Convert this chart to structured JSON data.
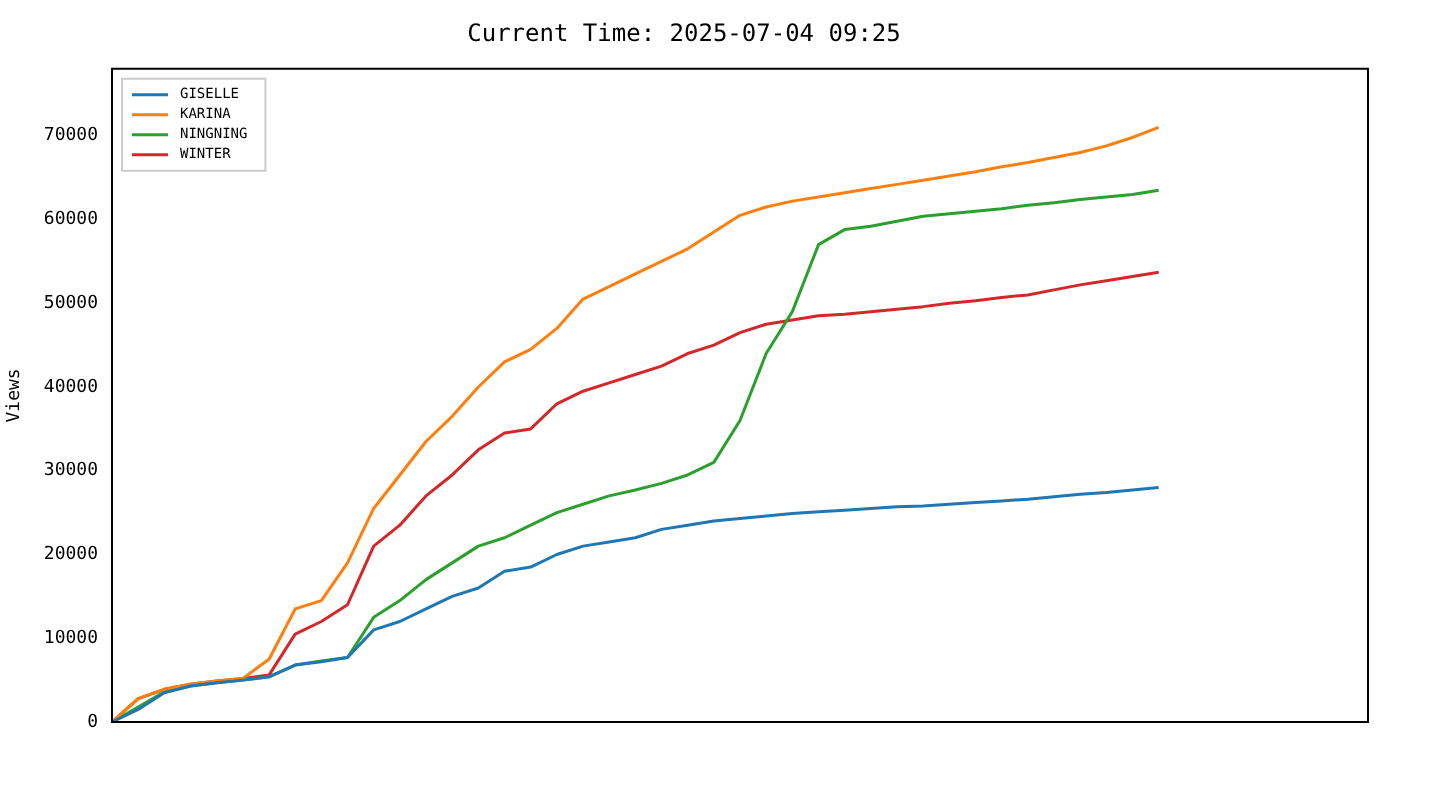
{
  "chart_data": {
    "type": "line",
    "title": "Current Time: 2025-07-04 09:25",
    "ylabel": "Views",
    "categories": [
      null,
      null,
      null,
      null,
      null,
      null,
      null,
      null,
      null,
      null,
      null,
      null,
      null,
      null,
      null,
      null,
      null,
      null,
      null,
      null,
      null,
      null,
      null,
      null,
      null,
      null,
      null,
      null,
      null,
      null,
      null,
      null,
      null,
      null,
      null,
      null,
      null,
      null,
      null,
      null,
      null,
      null,
      null,
      null,
      null,
      null,
      null,
      null,
      null
    ],
    "series": [
      {
        "name": "GISELLE",
        "color": "#1f77b4",
        "values": [
          0,
          1500,
          3500,
          4300,
          4700,
          5000,
          5400,
          6800,
          7200,
          7700,
          11000,
          12000,
          13500,
          15000,
          16000,
          18000,
          18500,
          20000,
          21000,
          21500,
          22000,
          23000,
          23500,
          24000,
          24300,
          24600,
          24900,
          25100,
          25300,
          25500,
          25700,
          25800,
          26000,
          26200,
          26400,
          26600,
          26900,
          27200,
          27400,
          27700,
          28000,
          null,
          null,
          null,
          null,
          null,
          null,
          null,
          null
        ]
      },
      {
        "name": "KARINA",
        "color": "#ff7f0e",
        "values": [
          0,
          2800,
          3900,
          4500,
          4900,
          5200,
          7500,
          13500,
          14500,
          19000,
          25500,
          29500,
          33500,
          36500,
          40000,
          43000,
          44500,
          47000,
          50500,
          52000,
          53500,
          55000,
          56500,
          58500,
          60500,
          61500,
          62200,
          62700,
          63200,
          63700,
          64200,
          64700,
          65200,
          65700,
          66300,
          66800,
          67400,
          68000,
          68800,
          69800,
          71000,
          null,
          null,
          null,
          null,
          null,
          null,
          null,
          null
        ]
      },
      {
        "name": "NINGNING",
        "color": "#2ca02c",
        "values": [
          0,
          1800,
          3600,
          4300,
          4700,
          5000,
          5400,
          6800,
          7300,
          7700,
          12500,
          14500,
          17000,
          19000,
          21000,
          22000,
          23500,
          25000,
          26000,
          27000,
          27700,
          28500,
          29500,
          31000,
          36000,
          44000,
          49000,
          57000,
          58800,
          59200,
          59800,
          60400,
          60700,
          61000,
          61300,
          61700,
          62000,
          62400,
          62700,
          63000,
          63500,
          null,
          null,
          null,
          null,
          null,
          null,
          null,
          null
        ]
      },
      {
        "name": "WINTER",
        "color": "#d62728",
        "values": [
          0,
          2800,
          3900,
          4500,
          4900,
          5200,
          5600,
          10500,
          12000,
          14000,
          21000,
          23500,
          27000,
          29500,
          32500,
          34500,
          35000,
          38000,
          39500,
          40500,
          41500,
          42500,
          44000,
          45000,
          46500,
          47500,
          48000,
          48500,
          48700,
          49000,
          49300,
          49600,
          50000,
          50300,
          50700,
          51000,
          51600,
          52200,
          52700,
          53200,
          53700,
          null,
          null,
          null,
          null,
          null,
          null,
          null,
          null
        ]
      }
    ],
    "ylim": [
      0,
      78000
    ],
    "yticks": [
      0,
      10000,
      20000,
      30000,
      40000,
      50000,
      60000,
      70000
    ],
    "legend": "top left",
    "grid": false,
    "tick_labels": "y",
    "marker": "none",
    "line_style": "solid"
  }
}
